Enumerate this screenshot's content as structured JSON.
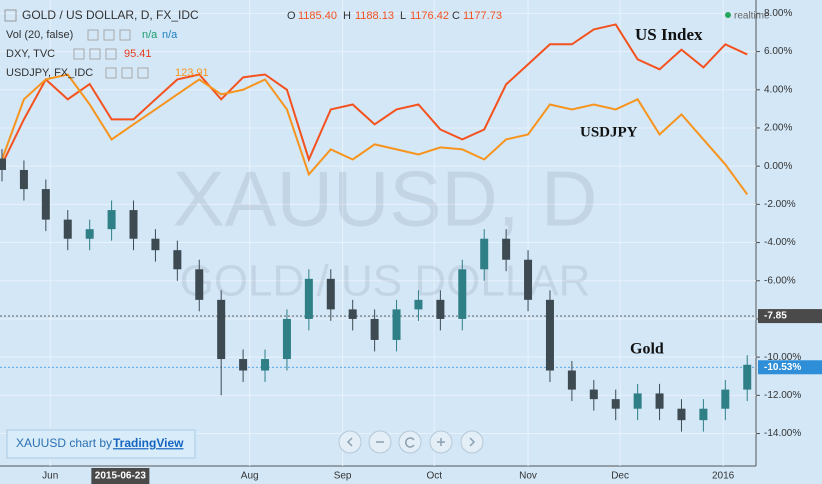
{
  "header": {
    "symbol": "GOLD / US DOLLAR, D, FX_IDC",
    "o_label": "O",
    "open": "1185.40",
    "h_label": "H",
    "high": "1188.13",
    "l_label": "L",
    "low": "1176.42",
    "c_label": "C",
    "close": "1177.73",
    "realtime": "realtime",
    "vol": "Vol (20, false)",
    "vol_a": "n/a",
    "vol_b": "n/a",
    "dxy": "DXY, TVC",
    "dxy_value": "95.41",
    "usdjpy": "USDJPY, FX_IDC",
    "usdjpy_value": "123.91"
  },
  "watermark": {
    "main": "XAUUSD, D",
    "sub": "GOLD / US DOLLAR"
  },
  "footer": {
    "text": "XAUUSD chart by",
    "link": "TradingView"
  },
  "chart_data": {
    "type": "candlestick",
    "annotations": {
      "us_index": "US Index",
      "usdjpy": "USDJPY",
      "gold": "Gold"
    },
    "x": [
      0,
      5,
      10,
      15,
      20,
      25,
      30,
      35,
      40,
      45,
      50,
      55,
      60,
      65,
      70,
      75,
      80,
      85,
      90,
      95,
      100,
      105,
      110,
      115,
      120,
      125,
      130,
      135,
      140,
      145,
      150,
      155,
      160,
      165,
      170
    ],
    "candles": {
      "name": "Gold",
      "up_color": "#2f7f86",
      "down_color": "#3d4a52",
      "open": [
        0.4,
        -0.2,
        -1.2,
        -2.8,
        -3.8,
        -3.3,
        -2.3,
        -3.8,
        -4.4,
        -5.4,
        -7.0,
        -10.1,
        -10.7,
        -10.1,
        -8.0,
        -5.9,
        -7.5,
        -8.0,
        -9.1,
        -7.5,
        -7.0,
        -8.0,
        -5.4,
        -3.8,
        -4.9,
        -7.0,
        -10.7,
        -11.7,
        -12.2,
        -12.7,
        -11.9,
        -12.7,
        -13.3,
        -12.7,
        -11.7
      ],
      "high": [
        0.9,
        0.3,
        -0.7,
        -2.3,
        -2.8,
        -1.8,
        -1.8,
        -3.3,
        -3.9,
        -4.9,
        -6.5,
        -9.6,
        -9.6,
        -7.5,
        -5.4,
        -5.4,
        -7.0,
        -7.5,
        -7.0,
        -6.5,
        -6.5,
        -4.9,
        -3.3,
        -3.3,
        -4.4,
        -6.5,
        -10.2,
        -11.2,
        -11.7,
        -11.4,
        -11.4,
        -12.2,
        -12.2,
        -11.2,
        -9.9
      ],
      "low": [
        -0.8,
        -1.8,
        -3.4,
        -4.4,
        -4.4,
        -3.9,
        -4.4,
        -5.0,
        -6.0,
        -7.6,
        -12.0,
        -11.3,
        -11.3,
        -10.7,
        -8.6,
        -8.1,
        -8.6,
        -9.7,
        -9.7,
        -8.1,
        -8.6,
        -8.6,
        -6.0,
        -5.5,
        -7.6,
        -11.3,
        -12.3,
        -12.8,
        -13.3,
        -13.3,
        -13.3,
        -13.9,
        -13.9,
        -13.3,
        -12.3
      ],
      "close": [
        -0.2,
        -1.2,
        -2.8,
        -3.8,
        -3.3,
        -2.3,
        -3.8,
        -4.4,
        -5.4,
        -7.0,
        -10.1,
        -10.7,
        -10.1,
        -8.0,
        -5.9,
        -7.5,
        -8.0,
        -9.1,
        -7.5,
        -7.0,
        -8.0,
        -5.4,
        -3.8,
        -4.9,
        -7.0,
        -10.7,
        -11.7,
        -12.2,
        -12.7,
        -11.9,
        -12.7,
        -13.3,
        -12.7,
        -11.7,
        -10.4
      ]
    },
    "series": [
      {
        "name": "DXY, TVC",
        "color": "#f4511e",
        "values": [
          0.09,
          2.45,
          4.54,
          3.5,
          4.3,
          2.45,
          2.45,
          3.5,
          4.54,
          4.8,
          3.5,
          4.65,
          4.8,
          4.0,
          0.35,
          2.97,
          3.23,
          2.19,
          2.97,
          3.23,
          1.92,
          1.4,
          1.92,
          4.28,
          5.33,
          6.38,
          6.38,
          7.16,
          7.42,
          5.59,
          5.07,
          6.1,
          5.17,
          6.38,
          5.85
        ]
      },
      {
        "name": "USDJPY, FX_IDC",
        "color": "#f7941d",
        "values": [
          0.35,
          3.5,
          4.54,
          4.8,
          3.23,
          1.4,
          2.19,
          2.97,
          3.76,
          4.54,
          3.76,
          4.0,
          4.54,
          2.97,
          -0.43,
          0.88,
          0.35,
          1.14,
          0.88,
          0.61,
          0.98,
          0.88,
          0.35,
          1.4,
          1.66,
          3.23,
          2.97,
          3.23,
          2.97,
          3.5,
          1.66,
          2.71,
          1.4,
          0.09,
          -1.48
        ]
      }
    ],
    "xlim": [
      0,
      172
    ],
    "ylim": [
      -15.7,
      8.7
    ],
    "xticks": [
      {
        "value": 11,
        "label": "Jun"
      },
      {
        "value": 56.5,
        "label": "Aug"
      },
      {
        "value": 77.7,
        "label": "Sep"
      },
      {
        "value": 98.6,
        "label": "Oct"
      },
      {
        "value": 120,
        "label": "Nov"
      },
      {
        "value": 141,
        "label": "Dec"
      },
      {
        "value": 164.5,
        "label": "2016"
      }
    ],
    "crosshair_x": {
      "value": 27,
      "label": "2015-06-23"
    },
    "yticks": [
      {
        "value": 8,
        "label": "8.00%"
      },
      {
        "value": 6,
        "label": "6.00%"
      },
      {
        "value": 4,
        "label": "4.00%"
      },
      {
        "value": 2,
        "label": "2.00%"
      },
      {
        "value": 0,
        "label": "0.00%"
      },
      {
        "value": -2,
        "label": "-2.00%"
      },
      {
        "value": -4,
        "label": "-4.00%"
      },
      {
        "value": -6,
        "label": "-6.00%"
      },
      {
        "value": -8,
        "label": "-8.00%"
      },
      {
        "value": -10,
        "label": "-10.00%"
      },
      {
        "value": -12,
        "label": "-12.00%"
      },
      {
        "value": -14,
        "label": "-14.00%"
      }
    ],
    "markers": [
      {
        "value": -7.85,
        "color": "#4a4a4a"
      },
      {
        "value": {
          "value": -10.53,
          "label": "-10.53%"
        },
        "color": "#2e8fd8"
      }
    ],
    "grid": true
  }
}
